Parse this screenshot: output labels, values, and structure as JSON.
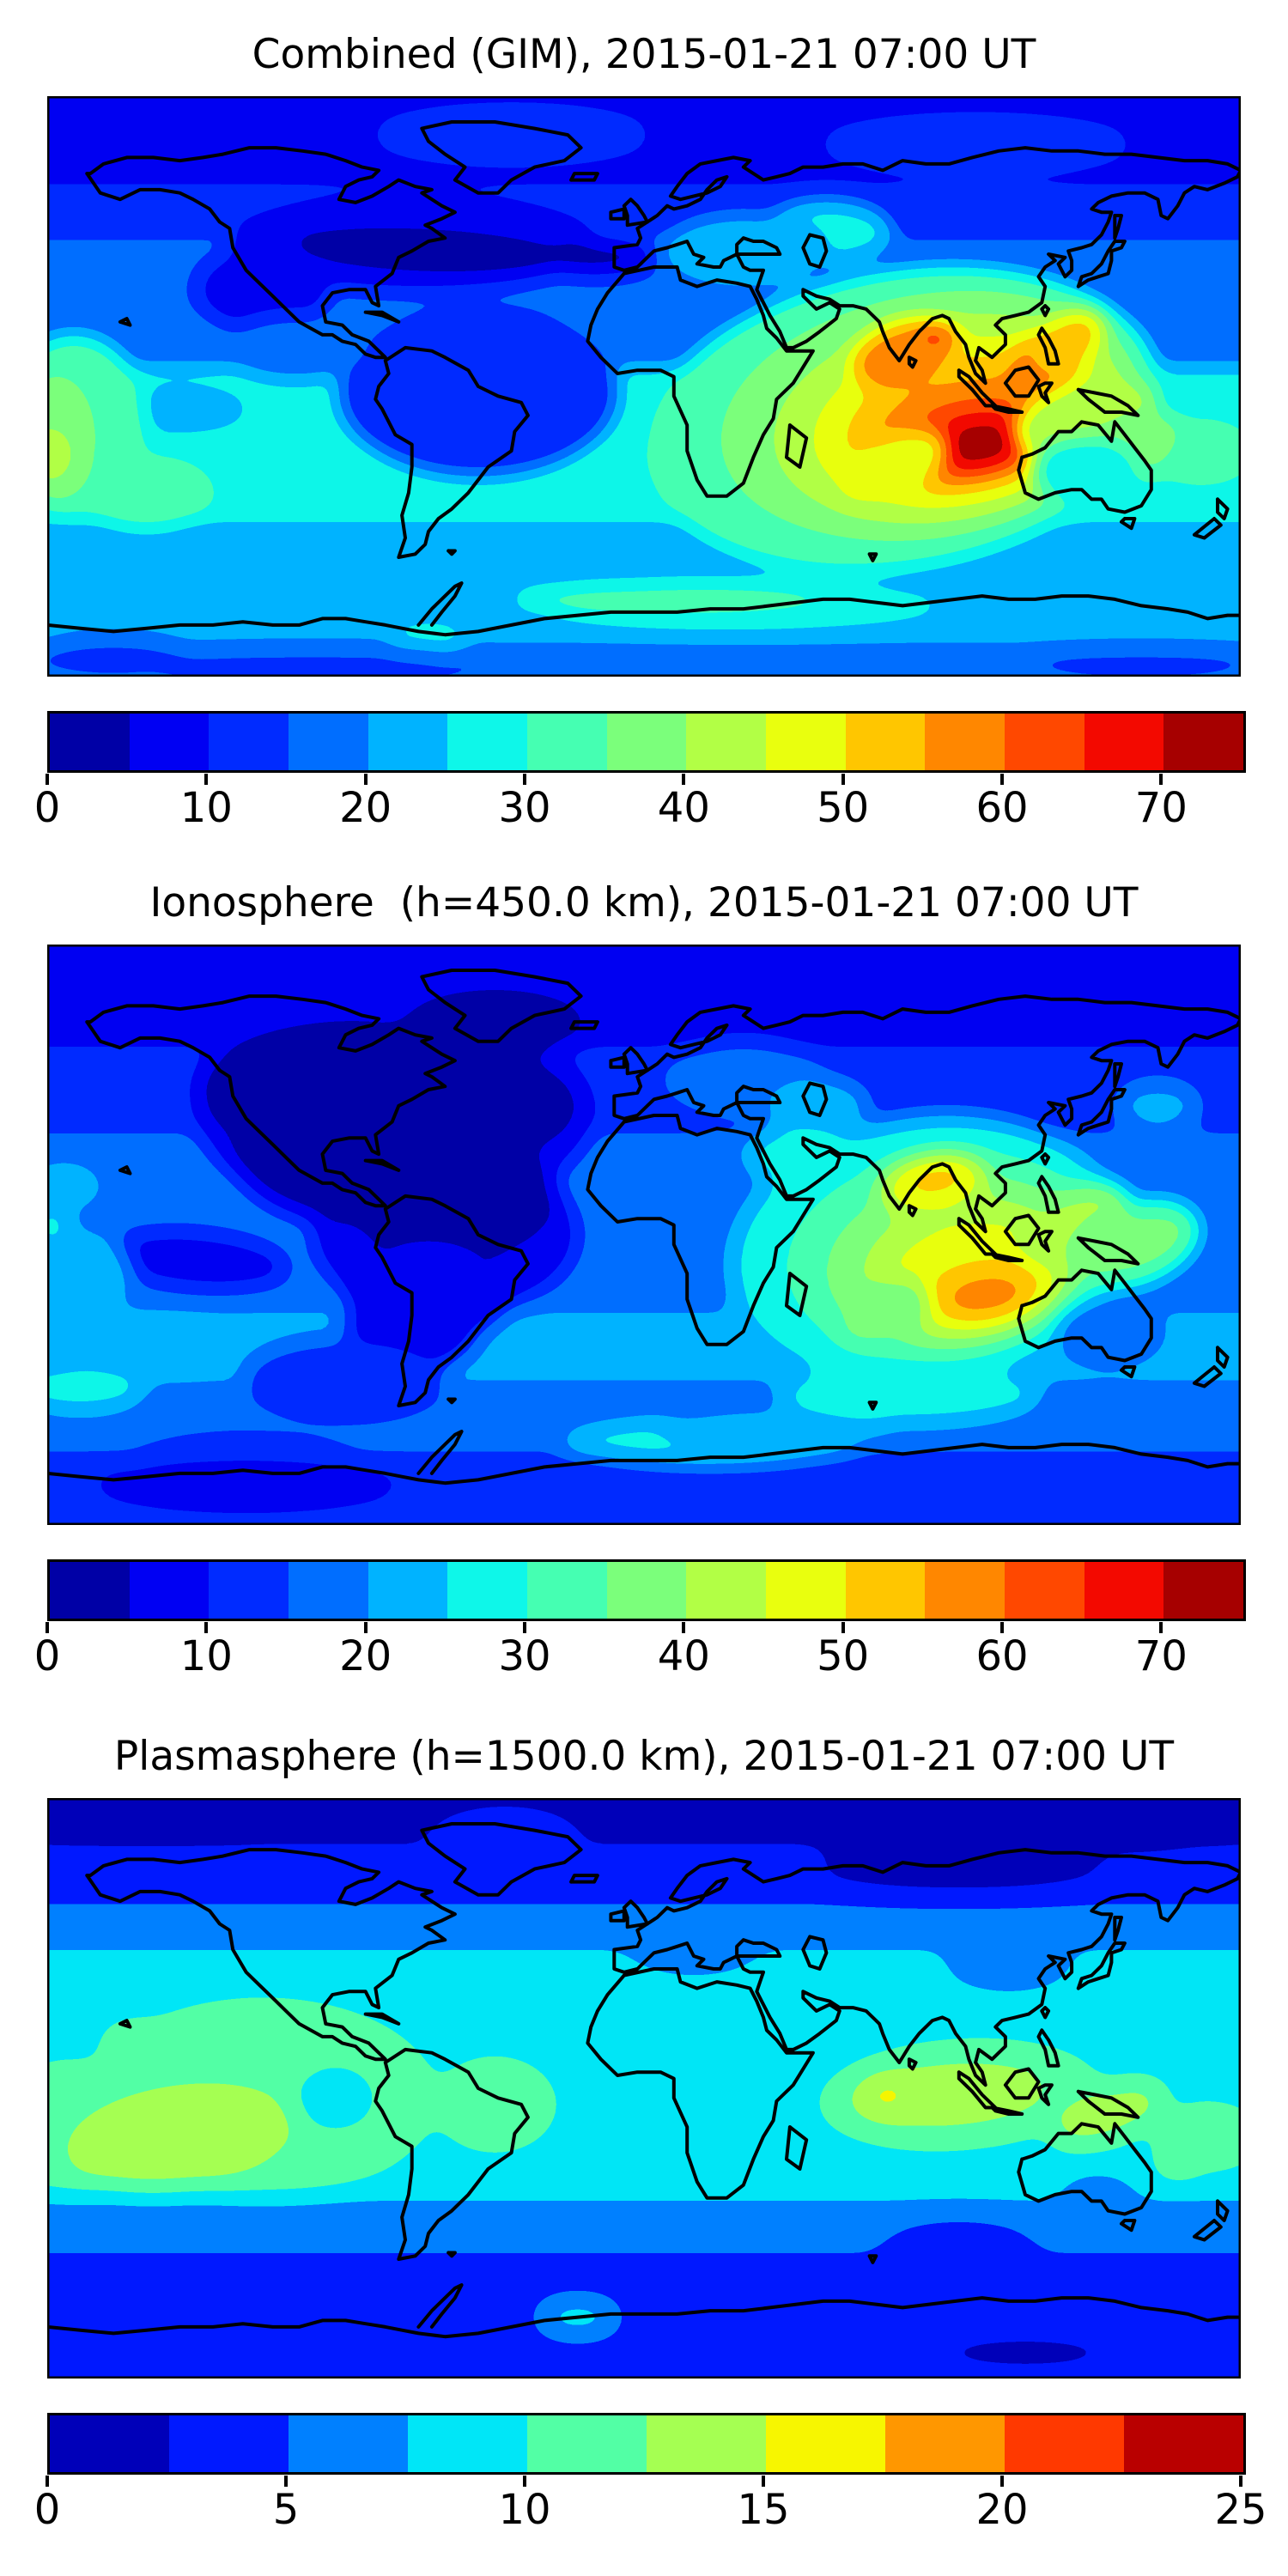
{
  "figure": {
    "background": "#ffffff",
    "n_panels": 3
  },
  "chart_data": [
    {
      "type": "heatmap",
      "subtype": "filled-contour world map, equirectangular, coastlines overlaid",
      "title": "Combined (GIM), 2015-01-21 07:00 UT",
      "x_range": [
        -180,
        180
      ],
      "y_range": [
        -90,
        90
      ],
      "grid": false,
      "colorbar": {
        "position": "bottom",
        "vmin": 0,
        "vmax": 75,
        "n_levels": 15,
        "level_step": 5,
        "tick_values": [
          0,
          10,
          20,
          30,
          40,
          50,
          60,
          70
        ],
        "tick_labels": [
          "0",
          "10",
          "20",
          "30",
          "40",
          "50",
          "60",
          "70"
        ],
        "colors": [
          "#0000A6",
          "#0000F3",
          "#002BFF",
          "#006EFF",
          "#00B3FF",
          "#0EF7E9",
          "#45FFB2",
          "#7BFF7B",
          "#B2FF45",
          "#E9FF0E",
          "#FFC600",
          "#FF8700",
          "#FF4800",
          "#F30900",
          "#A60000"
        ]
      },
      "peak": {
        "value_band": "70-75",
        "lon": 101,
        "lat": -18,
        "region": "Indian Ocean / Indonesia"
      },
      "field": {
        "blur": 12,
        "band_format": [
          "lat_from",
          "lat_to",
          "value"
        ],
        "bands": [
          [
            90,
            62,
            9
          ],
          [
            62,
            48,
            11
          ],
          [
            48,
            22,
            16
          ],
          [
            22,
            6,
            17
          ],
          [
            6,
            -18,
            27
          ],
          [
            -18,
            -42,
            28
          ],
          [
            -42,
            -62,
            22
          ],
          [
            -62,
            -80,
            22
          ],
          [
            -80,
            -90,
            17
          ]
        ],
        "blob_format": [
          "value",
          "lon",
          "lat",
          "rx_deg",
          "ry_deg",
          "rot_deg"
        ],
        "blobs": [
          [
            12,
            -40,
            78,
            40,
            8,
            0
          ],
          [
            12,
            100,
            75,
            45,
            8,
            0
          ],
          [
            7,
            -70,
            44,
            55,
            14,
            0
          ],
          [
            3,
            -65,
            42,
            42,
            7,
            3
          ],
          [
            3,
            -15,
            40,
            18,
            5,
            0
          ],
          [
            8,
            -115,
            30,
            20,
            13,
            0
          ],
          [
            12,
            -50,
            -2,
            42,
            26,
            0
          ],
          [
            17,
            -105,
            12,
            22,
            10,
            0
          ],
          [
            26,
            55,
            48,
            20,
            10,
            0
          ],
          [
            22,
            30,
            42,
            25,
            12,
            0
          ],
          [
            22,
            -140,
            -7,
            20,
            7,
            0
          ],
          [
            32,
            -172,
            -12,
            22,
            28,
            0
          ],
          [
            37,
            -177,
            -16,
            12,
            20,
            0
          ],
          [
            42,
            -179,
            -21,
            7,
            9,
            0
          ],
          [
            33,
            -150,
            -33,
            20,
            11,
            0
          ],
          [
            31,
            168,
            -20,
            18,
            12,
            0
          ],
          [
            27,
            -65,
            -78,
            12,
            5,
            0
          ],
          [
            27,
            30,
            -68,
            60,
            8,
            0
          ],
          [
            32,
            8,
            -66,
            48,
            5,
            0
          ],
          [
            32,
            60,
            -47,
            30,
            8,
            0
          ],
          [
            14,
            -100,
            -87,
            55,
            7,
            0
          ],
          [
            14,
            150,
            -86,
            35,
            6,
            0
          ],
          [
            14,
            -160,
            -84,
            25,
            7,
            0
          ],
          [
            32,
            78,
            -10,
            78,
            46,
            -10
          ],
          [
            37,
            86,
            -9,
            64,
            38,
            -10
          ],
          [
            42,
            92,
            -10,
            54,
            32,
            -10
          ],
          [
            47,
            95,
            -11,
            45,
            26,
            -10
          ],
          [
            52,
            97,
            -12,
            37,
            21,
            -10
          ],
          [
            57,
            98,
            -14,
            30,
            16,
            -10
          ],
          [
            62,
            99,
            -16,
            23,
            12,
            -8
          ],
          [
            67,
            100,
            -17,
            17,
            9,
            -8
          ],
          [
            73,
            101,
            -18,
            11,
            6,
            -8
          ],
          [
            57,
            78,
            10,
            16,
            10,
            -20
          ],
          [
            65,
            89,
            16,
            6,
            3,
            0
          ],
          [
            57,
            121,
            8,
            14,
            9,
            -35
          ],
          [
            52,
            128,
            14,
            12,
            8,
            -35
          ],
          [
            47,
            75,
            -25,
            18,
            9,
            -25
          ],
          [
            42,
            133,
            -10,
            22,
            11,
            -15
          ],
          [
            37,
            147,
            -19,
            16,
            10,
            -25
          ],
          [
            27,
            133,
            -26,
            16,
            10,
            0
          ]
        ]
      }
    },
    {
      "type": "heatmap",
      "subtype": "filled-contour world map, equirectangular, coastlines overlaid",
      "title": "Ionosphere  (h=450.0 km), 2015-01-21 07:00 UT",
      "x_range": [
        -180,
        180
      ],
      "y_range": [
        -90,
        90
      ],
      "grid": false,
      "colorbar": {
        "position": "bottom",
        "vmin": 0,
        "vmax": 75,
        "n_levels": 15,
        "level_step": 5,
        "tick_values": [
          0,
          10,
          20,
          30,
          40,
          50,
          60,
          70
        ],
        "tick_labels": [
          "0",
          "10",
          "20",
          "30",
          "40",
          "50",
          "60",
          "70"
        ],
        "colors": [
          "#0000A6",
          "#0000F3",
          "#002BFF",
          "#006EFF",
          "#00B3FF",
          "#0EF7E9",
          "#45FFB2",
          "#7BFF7B",
          "#B2FF45",
          "#E9FF0E",
          "#FFC600",
          "#FF8700",
          "#FF4800",
          "#F30900",
          "#A60000"
        ]
      },
      "peak": {
        "value_band": "55-60",
        "lon": 103,
        "lat": -19,
        "region": "Indian Ocean SE of Sumatra"
      },
      "field": {
        "blur": 13,
        "band_format": [
          "lat_from",
          "lat_to",
          "value"
        ],
        "bands": [
          [
            90,
            58,
            8
          ],
          [
            58,
            32,
            12
          ],
          [
            32,
            8,
            17
          ],
          [
            8,
            -22,
            17
          ],
          [
            -22,
            -48,
            21
          ],
          [
            -48,
            -70,
            16
          ],
          [
            -70,
            -90,
            11
          ]
        ],
        "blob_format": [
          "value",
          "lon",
          "lat",
          "rx_deg",
          "ry_deg",
          "rot_deg"
        ],
        "blobs": [
          [
            7,
            -75,
            38,
            60,
            32,
            0
          ],
          [
            7,
            -60,
            0,
            40,
            25,
            0
          ],
          [
            3,
            -90,
            45,
            45,
            22,
            0
          ],
          [
            3,
            -85,
            28,
            40,
            25,
            0
          ],
          [
            3,
            -58,
            12,
            32,
            20,
            0
          ],
          [
            3,
            -45,
            40,
            25,
            15,
            0
          ],
          [
            3,
            -45,
            66,
            28,
            11,
            0
          ],
          [
            5,
            -65,
            -15,
            25,
            18,
            0
          ],
          [
            7,
            -70,
            -28,
            20,
            14,
            0
          ],
          [
            8,
            -135,
            -8,
            28,
            9,
            5
          ],
          [
            12,
            -90,
            -45,
            30,
            12,
            0
          ],
          [
            22,
            -172,
            -12,
            18,
            14,
            0
          ],
          [
            27,
            -179,
            3,
            6,
            5,
            0
          ],
          [
            22,
            -175,
            15,
            12,
            8,
            0
          ],
          [
            22,
            -150,
            -35,
            25,
            10,
            0
          ],
          [
            26,
            -170,
            -48,
            20,
            8,
            0
          ],
          [
            17,
            30,
            48,
            25,
            12,
            0
          ],
          [
            22,
            52,
            40,
            16,
            9,
            0
          ],
          [
            26,
            48,
            25,
            18,
            10,
            0
          ],
          [
            21,
            155,
            40,
            13,
            8,
            0
          ],
          [
            26,
            20,
            -64,
            45,
            8,
            0
          ],
          [
            22,
            40,
            -60,
            35,
            6,
            0
          ],
          [
            13,
            -120,
            -72,
            35,
            10,
            0
          ],
          [
            8,
            -120,
            -77,
            45,
            8,
            0
          ],
          [
            26,
            85,
            -5,
            60,
            42,
            -8
          ],
          [
            31,
            90,
            -6,
            50,
            34,
            -8
          ],
          [
            36,
            94,
            -8,
            42,
            28,
            -8
          ],
          [
            41,
            97,
            -10,
            34,
            23,
            -8
          ],
          [
            46,
            99,
            -12,
            27,
            18,
            -8
          ],
          [
            52,
            102,
            -17,
            19,
            10,
            -8
          ],
          [
            57,
            103,
            -19,
            12,
            6,
            -8
          ],
          [
            46,
            87,
            16,
            17,
            9,
            -10
          ],
          [
            52,
            88,
            17,
            10,
            5,
            -10
          ],
          [
            41,
            130,
            3,
            18,
            10,
            -30
          ],
          [
            36,
            148,
            -3,
            20,
            12,
            -20
          ],
          [
            36,
            72,
            -25,
            15,
            9,
            -25
          ],
          [
            17,
            140,
            -30,
            16,
            10,
            0
          ],
          [
            26,
            80,
            -50,
            40,
            10,
            0
          ]
        ]
      }
    },
    {
      "type": "heatmap",
      "subtype": "filled-contour world map, equirectangular, coastlines overlaid",
      "title": "Plasmasphere (h=1500.0 km), 2015-01-21 07:00 UT",
      "x_range": [
        -180,
        180
      ],
      "y_range": [
        -90,
        90
      ],
      "grid": false,
      "colorbar": {
        "position": "bottom",
        "vmin": 0,
        "vmax": 25,
        "n_levels": 10,
        "level_step": 2.5,
        "tick_values": [
          0,
          5,
          10,
          15,
          20,
          25
        ],
        "tick_labels": [
          "0",
          "5",
          "10",
          "15",
          "20",
          "25"
        ],
        "colors": [
          "#0000B9",
          "#0019FF",
          "#0080FF",
          "#00E6F7",
          "#52FFA5",
          "#A5FF52",
          "#F7F600",
          "#FF9700",
          "#FF3900",
          "#B90000"
        ]
      },
      "peak": {
        "value_band": "15-17.5",
        "lon": 73,
        "lat": -2,
        "region": "Indian Ocean"
      },
      "field": {
        "blur": 15,
        "band_format": [
          "lat_from",
          "lat_to",
          "value"
        ],
        "bands": [
          [
            90,
            74,
            1.8
          ],
          [
            74,
            56,
            4
          ],
          [
            56,
            42,
            6.5
          ],
          [
            42,
            -34,
            9
          ],
          [
            -34,
            -50,
            6.5
          ],
          [
            -50,
            -90,
            4
          ]
        ],
        "blob_format": [
          "value",
          "lon",
          "lat",
          "rx_deg",
          "ry_deg",
          "rot_deg"
        ],
        "blobs": [
          [
            1.5,
            -150,
            82,
            35,
            7,
            0
          ],
          [
            1.5,
            140,
            80,
            40,
            8,
            0
          ],
          [
            2,
            95,
            68,
            45,
            9,
            0
          ],
          [
            4.5,
            -42,
            76,
            22,
            9,
            0
          ],
          [
            6.5,
            15,
            44,
            22,
            10,
            0
          ],
          [
            6.5,
            110,
            38,
            20,
            9,
            0
          ],
          [
            11.5,
            -115,
            -3,
            52,
            30,
            0
          ],
          [
            11.5,
            -172,
            -12,
            25,
            20,
            0
          ],
          [
            13.5,
            -140,
            -15,
            35,
            16,
            -8
          ],
          [
            9,
            -93,
            -3,
            13,
            11,
            0
          ],
          [
            11.5,
            -152,
            14,
            12,
            7,
            0
          ],
          [
            11.5,
            -45,
            -5,
            18,
            14,
            0
          ],
          [
            11.5,
            95,
            -2,
            42,
            16,
            -4
          ],
          [
            13.5,
            92,
            -2,
            30,
            10,
            -4
          ],
          [
            16,
            73,
            -2,
            7,
            5,
            0
          ],
          [
            13.5,
            140,
            -8,
            18,
            8,
            -20
          ],
          [
            13.5,
            166,
            -18,
            12,
            7,
            -35
          ],
          [
            11.5,
            170,
            -15,
            16,
            10,
            0
          ],
          [
            9,
            -20,
            -71,
            12,
            5,
            0
          ],
          [
            4,
            -70,
            -63,
            22,
            8,
            0
          ],
          [
            2,
            115,
            -82,
            28,
            6,
            0
          ],
          [
            4,
            95,
            -50,
            25,
            10,
            0
          ],
          [
            6.5,
            137,
            -32,
            12,
            6,
            0
          ]
        ]
      }
    }
  ]
}
